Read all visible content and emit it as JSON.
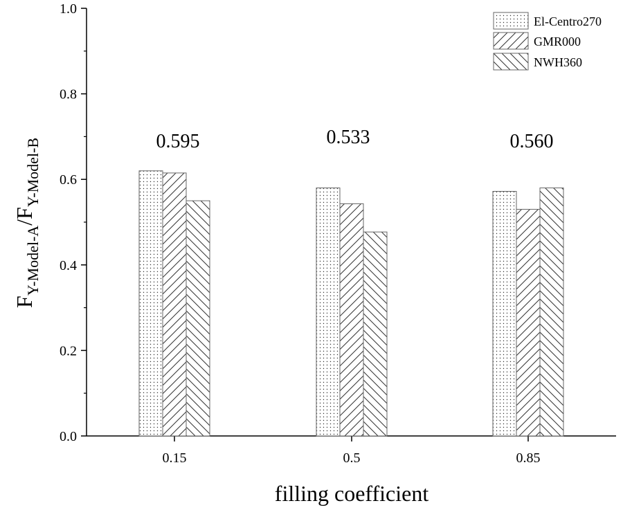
{
  "chart_data": {
    "type": "bar",
    "categories": [
      "0.15",
      "0.5",
      "0.85"
    ],
    "series": [
      {
        "name": "El-Centro270",
        "values": [
          0.62,
          0.58,
          0.572
        ],
        "pattern": "dots"
      },
      {
        "name": "GMR000",
        "values": [
          0.615,
          0.543,
          0.53
        ],
        "pattern": "forward-hatch"
      },
      {
        "name": "NWH360",
        "values": [
          0.55,
          0.477,
          0.58
        ],
        "pattern": "back-hatch"
      }
    ],
    "annotations": [
      "0.595",
      "0.533",
      "0.560"
    ],
    "xlabel": "filling coefficient",
    "ylabel": {
      "main1": "F",
      "sub1": "Y-Model-A",
      "main2": "/F",
      "sub2": "Y-Model-B"
    },
    "ylim": [
      0,
      1.0
    ],
    "yticks": [
      "0.0",
      "0.2",
      "0.4",
      "0.6",
      "0.8",
      "1.0"
    ],
    "legend_position": "top-right",
    "grid": false
  }
}
